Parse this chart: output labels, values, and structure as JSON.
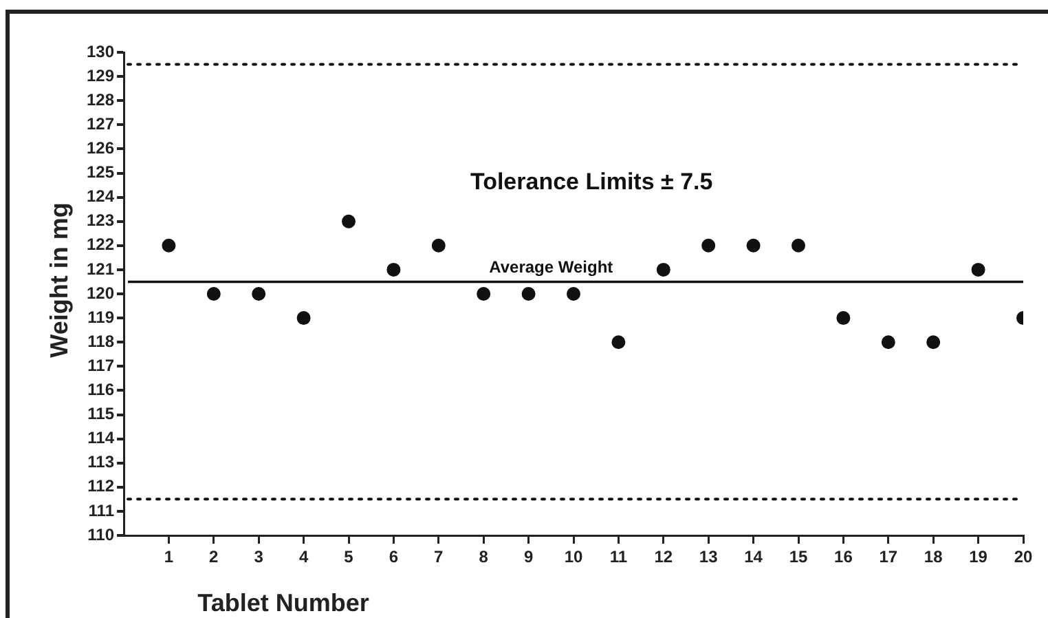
{
  "chart_data": {
    "type": "scatter",
    "xlabel": "Tablet Number",
    "ylabel": "Weight in mg",
    "x": [
      1,
      2,
      3,
      4,
      5,
      6,
      7,
      8,
      9,
      10,
      11,
      12,
      13,
      14,
      15,
      16,
      17,
      18,
      19,
      20
    ],
    "series": [
      {
        "color": "#111111",
        "values": [
          122,
          120,
          120,
          119,
          123,
          121,
          122,
          120,
          120,
          120,
          118,
          121,
          122,
          122,
          122,
          119,
          118,
          118,
          121,
          119
        ]
      }
    ],
    "xlim": [
      0,
      20
    ],
    "xticks": [
      1,
      2,
      3,
      4,
      5,
      6,
      7,
      8,
      9,
      10,
      11,
      12,
      13,
      14,
      15,
      16,
      17,
      18,
      19,
      20
    ],
    "ylim": [
      110,
      130
    ],
    "yticks": [
      110,
      111,
      112,
      113,
      114,
      115,
      116,
      117,
      118,
      119,
      120,
      121,
      122,
      123,
      124,
      125,
      126,
      127,
      128,
      129,
      130
    ],
    "ref_lines": [
      {
        "axis": "y",
        "value": 120.5,
        "label": "Average Weight",
        "color": "#111111",
        "line_style": "solid"
      },
      {
        "axis": "y",
        "value": 129.5,
        "color": "#111111",
        "line_style": "dotted"
      },
      {
        "axis": "y",
        "value": 111.5,
        "color": "#111111",
        "line_style": "dotted"
      }
    ],
    "annotations": [
      "Tolerance Limits ± 7.5"
    ],
    "marker": "circle",
    "grid": false,
    "legend": false
  }
}
